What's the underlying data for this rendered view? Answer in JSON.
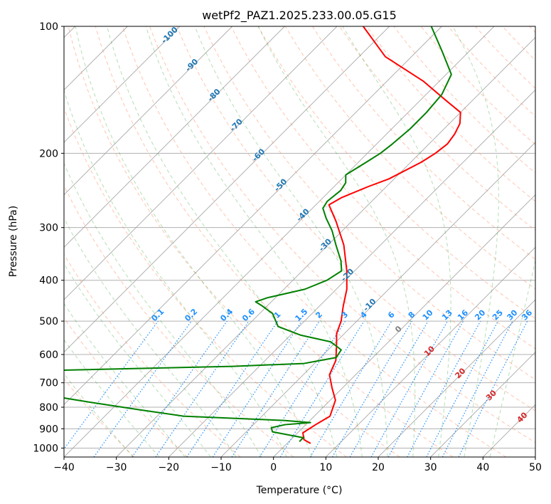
{
  "chart_data": {
    "type": "line",
    "subtype": "skew-T log-P diagram",
    "title": "wetPf2_PAZ1.2025.233.00.05.G15",
    "xlabel": "Temperature (°C)",
    "ylabel": "Pressure (hPa)",
    "xlim": [
      -40,
      50
    ],
    "ylim": [
      1050,
      100
    ],
    "y_scale": "log (inverted)",
    "x_ticks": [
      "−40",
      "−30",
      "−20",
      "−10",
      "0",
      "10",
      "20",
      "30",
      "40",
      "50"
    ],
    "y_ticks": [
      100,
      200,
      300,
      400,
      500,
      600,
      700,
      800,
      900,
      1000
    ],
    "grid": true,
    "series": [
      {
        "name": "",
        "color": "#ff0000",
        "points": [
          [
            4.5,
            975
          ],
          [
            2.5,
            955
          ],
          [
            1.0,
            920
          ],
          [
            2.0,
            875
          ],
          [
            3.0,
            840
          ],
          [
            1.0,
            770
          ],
          [
            -2.0,
            720
          ],
          [
            -5.0,
            670
          ],
          [
            -6.5,
            620
          ],
          [
            -9.0,
            575
          ],
          [
            -11.5,
            535
          ],
          [
            -13.0,
            500
          ],
          [
            -15.5,
            460
          ],
          [
            -18.0,
            420
          ],
          [
            -21.5,
            380
          ],
          [
            -27.0,
            330
          ],
          [
            -33.0,
            290
          ],
          [
            -37.5,
            265
          ],
          [
            -36.5,
            255
          ],
          [
            -33.5,
            240
          ],
          [
            -31.0,
            230
          ],
          [
            -28.0,
            210
          ],
          [
            -27.0,
            200
          ],
          [
            -26.5,
            190
          ],
          [
            -27.0,
            180
          ],
          [
            -28.0,
            170
          ],
          [
            -30.0,
            160
          ],
          [
            -35.0,
            150
          ],
          [
            -43.0,
            135
          ],
          [
            -55.0,
            118
          ],
          [
            -65.0,
            100
          ]
        ]
      },
      {
        "name": "",
        "color": "#008000",
        "points": [
          [
            2.0,
            965
          ],
          [
            2.0,
            945
          ],
          [
            -5.0,
            915
          ],
          [
            -6.0,
            895
          ],
          [
            -4.0,
            880
          ],
          [
            0.5,
            870
          ],
          [
            -5.0,
            860
          ],
          [
            -25.0,
            840
          ],
          [
            -35.0,
            810
          ],
          [
            -45.0,
            780
          ],
          [
            -65.0,
            720
          ],
          [
            -95.0,
            690
          ],
          [
            -60.0,
            655
          ],
          [
            -25.0,
            640
          ],
          [
            -12.0,
            630
          ],
          [
            -7.0,
            610
          ],
          [
            -7.5,
            585
          ],
          [
            -11.0,
            560
          ],
          [
            -18.0,
            540
          ],
          [
            -24.0,
            515
          ],
          [
            -27.5,
            480
          ],
          [
            -31.0,
            460
          ],
          [
            -33.0,
            450
          ],
          [
            -31.5,
            440
          ],
          [
            -26.0,
            420
          ],
          [
            -23.5,
            400
          ],
          [
            -22.5,
            380
          ],
          [
            -24.5,
            360
          ],
          [
            -28.5,
            330
          ],
          [
            -32.0,
            305
          ],
          [
            -35.5,
            285
          ],
          [
            -38.0,
            270
          ],
          [
            -38.5,
            260
          ],
          [
            -38.0,
            245
          ],
          [
            -38.5,
            235
          ],
          [
            -40.0,
            225
          ],
          [
            -38.5,
            210
          ],
          [
            -37.5,
            200
          ],
          [
            -37.0,
            190
          ],
          [
            -36.5,
            175
          ],
          [
            -36.5,
            160
          ],
          [
            -37.0,
            145
          ],
          [
            -39.0,
            130
          ],
          [
            -45.0,
            115
          ],
          [
            -52.0,
            100
          ]
        ]
      }
    ],
    "isotherm_labels": [
      "-100",
      "-90",
      "-80",
      "-70",
      "-60",
      "-50",
      "-40",
      "-30",
      "-20",
      "-10"
    ],
    "dry_adiabat_labels": [
      "0",
      "10",
      "20",
      "30",
      "40"
    ],
    "mixing_ratio_labels": [
      "0.1",
      "0.2",
      "0.4",
      "0.6",
      "1",
      "1.5",
      "2",
      "3",
      "4",
      "6",
      "8",
      "10",
      "13",
      "16",
      "20",
      "25",
      "30",
      "36"
    ],
    "colors": {
      "temperature": "#ff0000",
      "dewpoint": "#008000",
      "isotherm_label": "#1f77b4",
      "dry_adiabat": "#ff7f50",
      "moist_adiabat": "#2ca02c",
      "mixing_ratio": "#1e90ff",
      "dry_adiabat_label": "#d62728",
      "lcl_label": "#808080"
    }
  }
}
